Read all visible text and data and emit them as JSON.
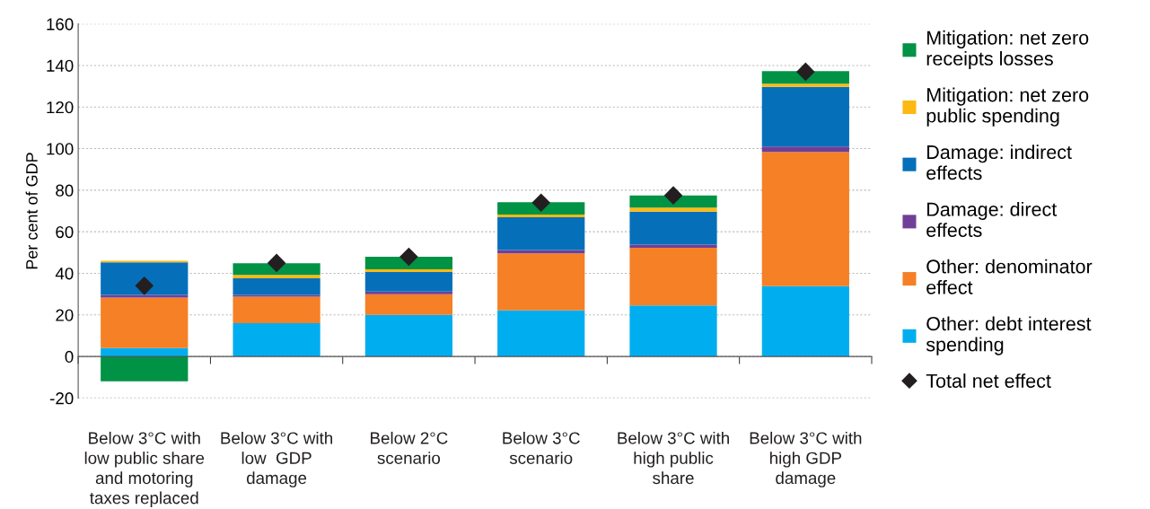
{
  "chart_data": {
    "type": "bar",
    "stacked": true,
    "ylabel": "Per cent of GDP",
    "categories": [
      "Below 3°C with\nlow public share\nand motoring\ntaxes replaced",
      "Below 3°C with\nlow  GDP\ndamage",
      "Below 2°C\nscenario",
      "Below 3°C\nscenario",
      "Below 3°C with\nhigh public\nshare",
      "Below 3°C with\nhigh GDP\ndamage"
    ],
    "series": [
      {
        "name": "Other: debt interest spending",
        "color": "#00aeef",
        "values": [
          4,
          16,
          20,
          22.2,
          24.6,
          33.8
        ]
      },
      {
        "name": "Other: denominator effect",
        "color": "#f58025",
        "values": [
          24.3,
          12.8,
          10,
          27.4,
          27.7,
          64.6
        ]
      },
      {
        "name": "Damage: direct effects",
        "color": "#6f3f98",
        "values": [
          1.3,
          0.8,
          1.2,
          1.6,
          1.5,
          2.6
        ]
      },
      {
        "name": "Damage: indirect effects",
        "color": "#0570b9",
        "values": [
          15.7,
          8,
          9.4,
          15.8,
          15.9,
          28.7
        ]
      },
      {
        "name": "Mitigation: net zero public spending",
        "color": "#fdb913",
        "values": [
          0.7,
          1.6,
          1.3,
          1.3,
          1.9,
          1.5
        ]
      },
      {
        "name": "Mitigation: net zero receipts losses",
        "color": "#009245",
        "values": [
          -12,
          5.7,
          6.1,
          5.9,
          5.9,
          6.1
        ]
      },
      {
        "name": "Total net effect",
        "type": "scatter",
        "marker": "diamond",
        "color": "#231f20",
        "values": [
          34,
          45,
          48,
          74,
          77.5,
          137
        ]
      }
    ],
    "ylim": [
      -20,
      160
    ],
    "yticks": [
      -20,
      0,
      20,
      40,
      60,
      80,
      100,
      120,
      140,
      160
    ],
    "grid": "y",
    "legend": "right"
  }
}
